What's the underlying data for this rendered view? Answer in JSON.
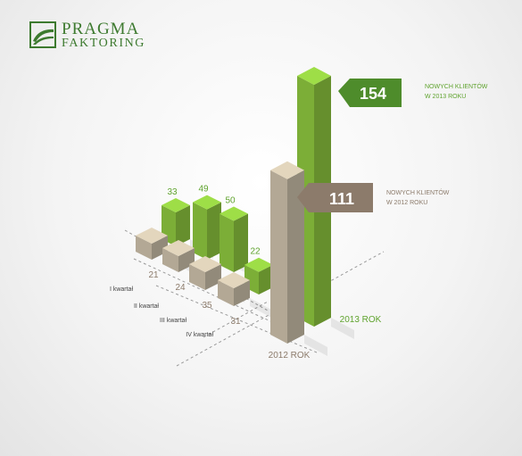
{
  "brand": {
    "line1": "PRAGMA",
    "line2": "FAKTORING"
  },
  "colors": {
    "green": "#8dc63f",
    "green_dark": "#5fa32e",
    "beige": "#cbbfa9",
    "beige_dark": "#a9987e",
    "callout_green": "#4e8c2b",
    "callout_brown": "#8c7b6b",
    "text_green": "#5fa32e",
    "text_brown": "#8c7b6b"
  },
  "chart_data": {
    "type": "bar",
    "title": "",
    "categories": [
      "I kwartał",
      "II kwartał",
      "III kwartał",
      "IV kwartał"
    ],
    "series": [
      {
        "name": "2012 ROK",
        "values": [
          21,
          24,
          35,
          31
        ],
        "total": 111
      },
      {
        "name": "2013 ROK",
        "values": [
          33,
          49,
          50,
          22
        ],
        "total": 154
      }
    ],
    "callouts": [
      {
        "value": "154",
        "line1": "NOWYCH KLIENTÓW",
        "line2": "W 2013 ROKU"
      },
      {
        "value": "111",
        "line1": "NOWYCH KLIENTÓW",
        "line2": "W 2012 ROKU"
      }
    ]
  }
}
